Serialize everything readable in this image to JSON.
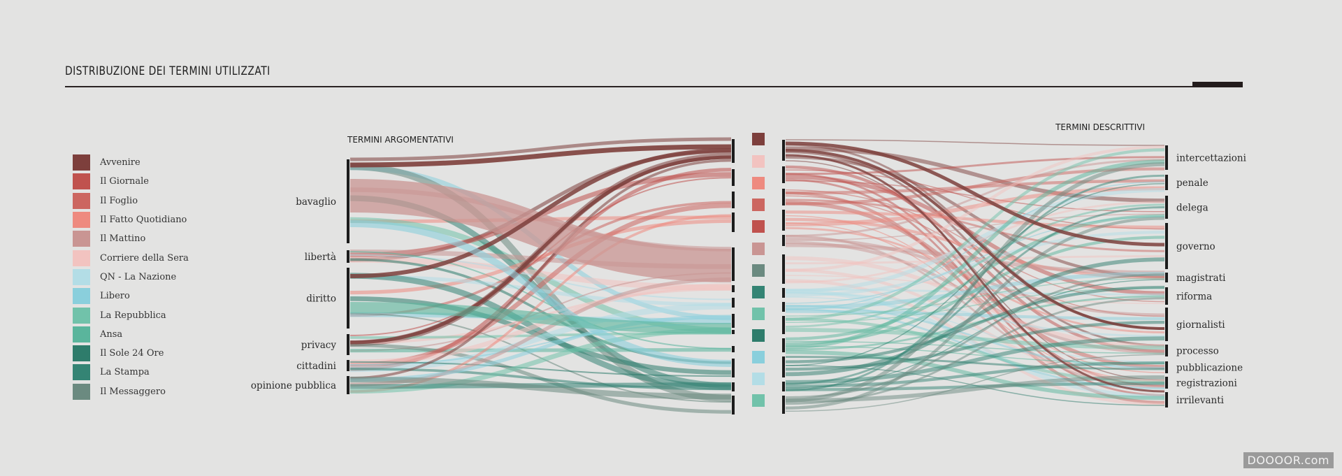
{
  "title": "DISTRIBUZIONE DEI TERMINI UTILIZZATI",
  "left_header": "TERMINI ARGOMENTATIVI",
  "right_header": "TERMINI DESCRITTIVI",
  "watermark": "DOOOOR.com",
  "legend": [
    {
      "label": "Avvenire",
      "color": "#7d3f3c"
    },
    {
      "label": "Il Giornale",
      "color": "#c0524e"
    },
    {
      "label": "Il Foglio",
      "color": "#cc6660"
    },
    {
      "label": "Il Fatto Quotidiano",
      "color": "#ee8a7f"
    },
    {
      "label": "Il Mattino",
      "color": "#c99593"
    },
    {
      "label": "Corriere della Sera",
      "color": "#f2c3c0"
    },
    {
      "label": "QN - La Nazione",
      "color": "#b3dde6"
    },
    {
      "label": "Libero",
      "color": "#8acfdc"
    },
    {
      "label": "La Repubblica",
      "color": "#71c2aa"
    },
    {
      "label": "Ansa",
      "color": "#5ab59c"
    },
    {
      "label": "Il Sole 24 Ore",
      "color": "#2e7c6b"
    },
    {
      "label": "La Stampa",
      "color": "#348474"
    },
    {
      "label": "Il Messaggero",
      "color": "#6b8a80"
    }
  ],
  "left_nodes": [
    "bavaglio",
    "libertà",
    "diritto",
    "privacy",
    "cittadini",
    "opinione pubblica"
  ],
  "right_nodes": [
    "intercettazioni",
    "penale",
    "delega",
    "governo",
    "magistrati",
    "riforma",
    "giornalisti",
    "processo",
    "pubblicazione",
    "registrazioni",
    "irrilevanti"
  ],
  "middle_squares": [
    "#7d3f3c",
    "#f2c3c0",
    "#ee8a7f",
    "#cc6660",
    "#c0524e",
    "#c99593",
    "#6b8a80",
    "#348474",
    "#71c2aa",
    "#2e7c6b",
    "#8acfdc",
    "#b3dde6",
    "#71c2aa"
  ]
}
